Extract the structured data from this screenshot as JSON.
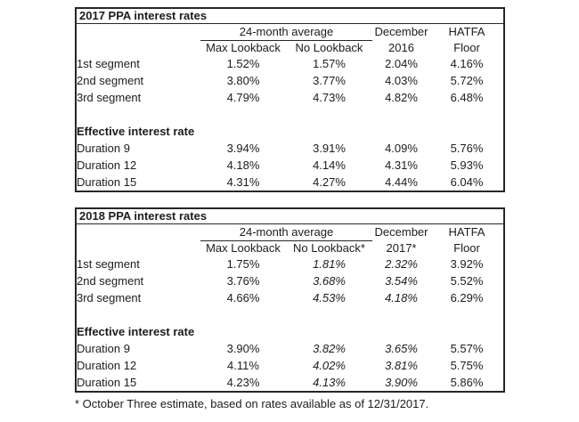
{
  "footnote": "* October Three estimate, based on rates available as of 12/31/2017.",
  "tables": [
    {
      "title": "2017 PPA interest rates",
      "group_header": "24-month average",
      "dec_header": "December",
      "hatfa_header": "HATFA",
      "sub_headers": [
        "Max Lookback",
        "No Lookback",
        "2016",
        "Floor"
      ],
      "section_header": "Effective interest rate",
      "segments": [
        [
          "1st segment",
          "1.52%",
          "1.57%",
          "2.04%",
          "4.16%"
        ],
        [
          "2nd segment",
          "3.80%",
          "3.77%",
          "4.03%",
          "5.72%"
        ],
        [
          "3rd segment",
          "4.79%",
          "4.73%",
          "4.82%",
          "6.48%"
        ]
      ],
      "durations": [
        [
          "Duration 9",
          "3.94%",
          "3.91%",
          "4.09%",
          "5.76%"
        ],
        [
          "Duration 12",
          "4.18%",
          "4.14%",
          "4.31%",
          "5.93%"
        ],
        [
          "Duration 15",
          "4.31%",
          "4.27%",
          "4.44%",
          "6.04%"
        ]
      ]
    },
    {
      "title": "2018 PPA interest rates",
      "group_header": "24-month average",
      "dec_header": "December",
      "hatfa_header": "HATFA",
      "sub_headers": [
        "Max Lookback",
        "No Lookback*",
        "2017*",
        "Floor"
      ],
      "section_header": "Effective interest rate",
      "segments": [
        [
          "1st segment",
          "1.75%",
          "1.81%",
          "2.32%",
          "3.92%"
        ],
        [
          "2nd segment",
          "3.76%",
          "3.68%",
          "3.54%",
          "5.52%"
        ],
        [
          "3rd segment",
          "4.66%",
          "4.53%",
          "4.18%",
          "6.29%"
        ]
      ],
      "durations": [
        [
          "Duration 9",
          "3.90%",
          "3.82%",
          "3.65%",
          "5.57%"
        ],
        [
          "Duration 12",
          "4.11%",
          "4.02%",
          "3.81%",
          "5.75%"
        ],
        [
          "Duration 15",
          "4.23%",
          "4.13%",
          "3.90%",
          "5.86%"
        ]
      ]
    }
  ]
}
